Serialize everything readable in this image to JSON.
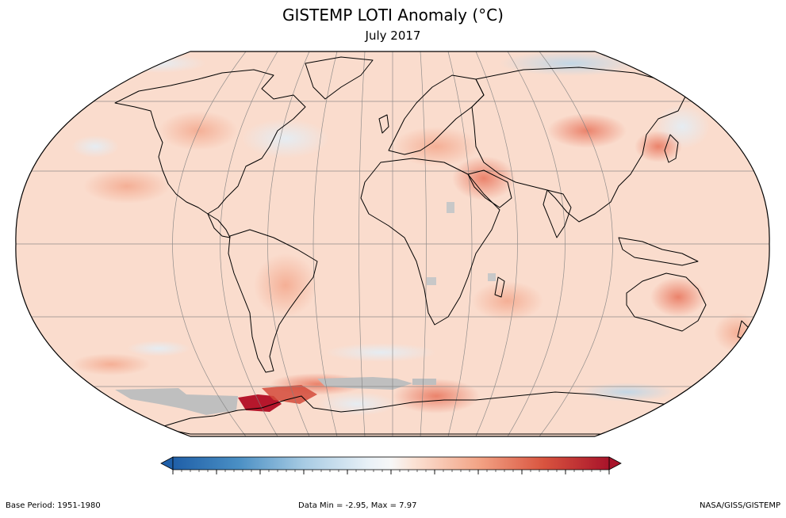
{
  "title": "GISTEMP LOTI Anomaly (°C)",
  "subtitle": "July 2017",
  "colorbar": {
    "ticks": [
      "-5",
      "-4",
      "-3",
      "-2",
      "-1",
      "0",
      "1",
      "2",
      "3",
      "4",
      "5"
    ],
    "min": -5,
    "max": 5,
    "colors": {
      "neg_strong": "#2166ac",
      "neg_mid": "#6aa8d0",
      "neg_light": "#d1e5f0",
      "neutral": "#f7f7f7",
      "pos_light": "#fddbc7",
      "pos_mid": "#f08c6a",
      "pos_strong": "#b2182b"
    }
  },
  "map": {
    "projection": "Robinson",
    "missing_data_color": "#bfbfbf"
  },
  "footer": {
    "base_period": "Base Period: 1951-1980",
    "data_range": "Data Min = -2.95, Max = 7.97",
    "credit": "NASA/GISS/GISTEMP"
  }
}
